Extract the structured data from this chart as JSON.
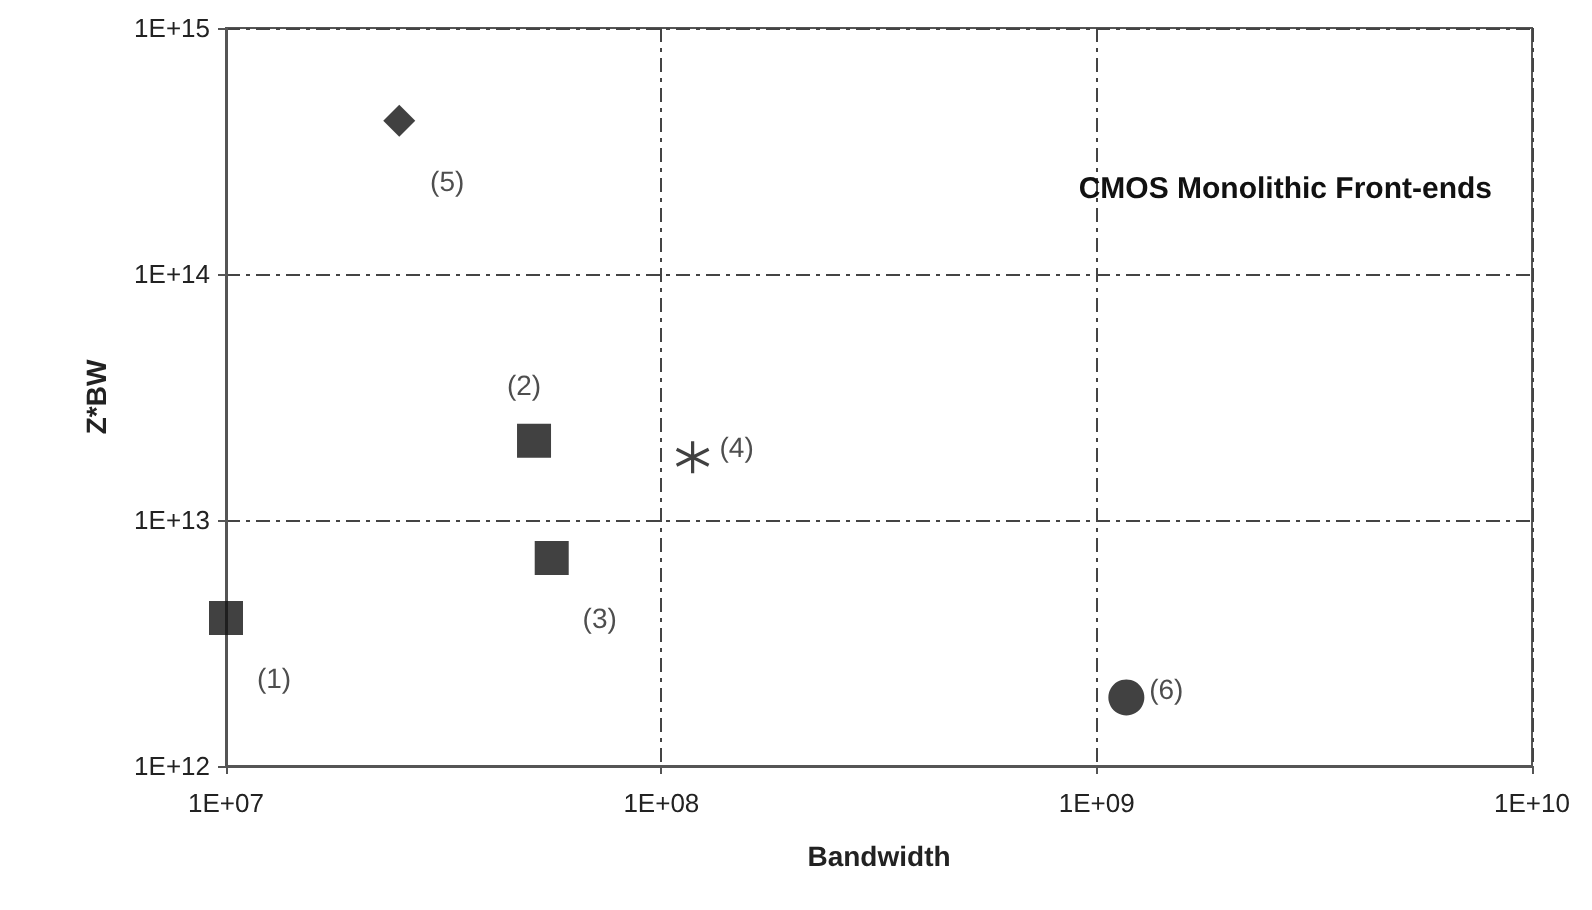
{
  "chart_data": {
    "type": "scatter",
    "title": "CMOS Monolithic Front-ends",
    "xlabel": "Bandwidth",
    "ylabel": "Z*BW",
    "log": "xy",
    "grid": true,
    "legend": false,
    "xlim": [
      10000000,
      10000000000
    ],
    "ylim": [
      1000000000000,
      1000000000000000
    ],
    "xticks": [
      {
        "value": 10000000,
        "label": "1E+07"
      },
      {
        "value": 100000000,
        "label": "1E+08"
      },
      {
        "value": 1000000000,
        "label": "1E+09"
      },
      {
        "value": 10000000000,
        "label": "1E+10"
      }
    ],
    "yticks": [
      {
        "value": 1000000000000,
        "label": "1E+12"
      },
      {
        "value": 10000000000000,
        "label": "1E+13"
      },
      {
        "value": 100000000000000,
        "label": "1E+14"
      },
      {
        "value": 1000000000000000,
        "label": "1E+15"
      }
    ],
    "series": [
      {
        "name": "(1)",
        "color": "#111111",
        "marker": "square",
        "x": [
          10000000
        ],
        "values": [
          4000000000000
        ]
      },
      {
        "name": "(2)",
        "color": "#111111",
        "marker": "square",
        "x": [
          51000000
        ],
        "values": [
          21000000000000
        ]
      },
      {
        "name": "(3)",
        "color": "#111111",
        "marker": "square",
        "x": [
          56000000
        ],
        "values": [
          7000000000000
        ]
      },
      {
        "name": "(4)",
        "color": "#111111",
        "marker": "cross",
        "x": [
          118000000
        ],
        "values": [
          18000000000000
        ]
      },
      {
        "name": "(5)",
        "color": "#111111",
        "marker": "diamond",
        "x": [
          25000000
        ],
        "values": [
          420000000000000
        ]
      },
      {
        "name": "(6)",
        "color": "#111111",
        "marker": "circle",
        "x": [
          1170000000
        ],
        "values": [
          1900000000000
        ]
      }
    ]
  }
}
